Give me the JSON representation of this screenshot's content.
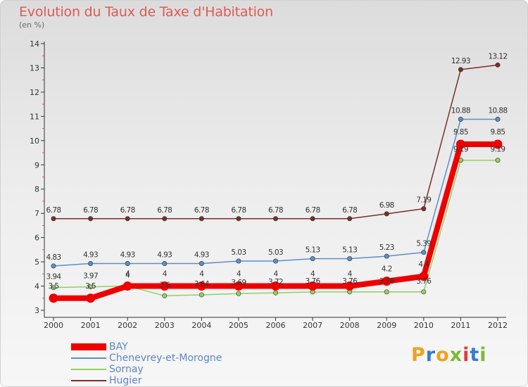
{
  "title": "Evolution du Taux de Taxe d'Habitation",
  "subtitle": "(en %)",
  "logo": {
    "text": "Proxiti",
    "colors": [
      "#f0a020",
      "#2f7fd0",
      "#f0a020",
      "#7dbb32",
      "#e43b3b",
      "#2f7fd0",
      "#7dbb32"
    ]
  },
  "chart_data": {
    "type": "line",
    "title": "Evolution du Taux de Taxe d'Habitation",
    "ylabel": "(en %)",
    "xlabel": "",
    "x": [
      "2000",
      "2001",
      "2002",
      "2003",
      "2004",
      "2005",
      "2006",
      "2007",
      "2008",
      "2009",
      "2010",
      "2011",
      "2012"
    ],
    "y_ticks": [
      "3",
      "4",
      "5",
      "6",
      "7",
      "8",
      "9",
      "10",
      "11",
      "12",
      "13",
      "14"
    ],
    "ylim": [
      3,
      14
    ],
    "grid": false,
    "legend_position": "bottom-left",
    "series": [
      {
        "name": "BAY",
        "color": "#ee0000",
        "values": [
          3.5,
          3.5,
          4,
          4,
          4,
          4,
          4,
          4,
          4,
          4.2,
          4.4,
          9.85,
          9.85
        ],
        "labels": [
          "3.5",
          "3.5",
          "4",
          "4",
          "4",
          "4",
          "4",
          "4",
          "4",
          "4.2",
          "4.4",
          "9.85",
          "9.85"
        ]
      },
      {
        "name": "Chenevrey-et-Morogne",
        "color": "#5b8fc8",
        "values": [
          4.83,
          4.93,
          4.93,
          4.93,
          4.93,
          5.03,
          5.03,
          5.13,
          5.13,
          5.23,
          5.39,
          10.88,
          10.88
        ],
        "labels": [
          "4.83",
          "4.93",
          "4.93",
          "4.93",
          "4.93",
          "5.03",
          "5.03",
          "5.13",
          "5.13",
          "5.23",
          "5.39",
          "10.88",
          "10.88"
        ]
      },
      {
        "name": "Sornay",
        "color": "#90d060",
        "values": [
          3.94,
          3.97,
          4,
          3.6,
          3.64,
          3.69,
          3.72,
          3.76,
          3.76,
          3.76,
          3.76,
          9.19,
          9.19
        ],
        "labels": [
          "3.94",
          "3.97",
          "4",
          "3.6",
          "3.64",
          "3.69",
          "3.72",
          "3.76",
          "3.76",
          "3.76",
          "3.76",
          "9.19",
          "9.19"
        ]
      },
      {
        "name": "Hugier",
        "color": "#7a2e2e",
        "values": [
          6.78,
          6.78,
          6.78,
          6.78,
          6.78,
          6.78,
          6.78,
          6.78,
          6.78,
          6.98,
          7.19,
          12.93,
          13.12
        ],
        "labels": [
          "6.78",
          "6.78",
          "6.78",
          "6.78",
          "6.78",
          "6.78",
          "6.78",
          "6.78",
          "6.78",
          "6.98",
          "7.19",
          "12.93",
          "13.12"
        ]
      }
    ]
  }
}
